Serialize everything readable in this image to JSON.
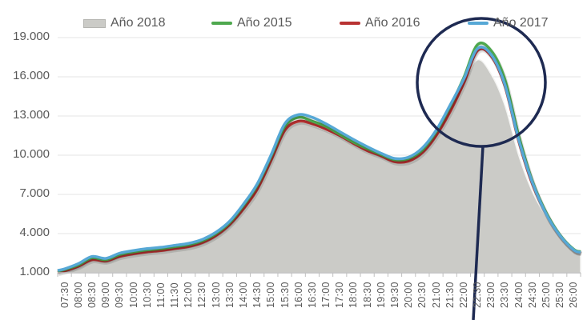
{
  "chart_data": {
    "type": "area+line",
    "title": "",
    "xlabel": "",
    "ylabel": "",
    "ylim": [
      1000,
      19000
    ],
    "yticks": [
      "1.000",
      "4.000",
      "7.000",
      "10.000",
      "13.000",
      "16.000",
      "19.000"
    ],
    "ytick_values": [
      1000,
      4000,
      7000,
      10000,
      13000,
      16000,
      19000
    ],
    "grid": "horizontal",
    "legend_position": "top",
    "categories": [
      "07:30",
      "08:00",
      "08:30",
      "09:00",
      "09:30",
      "10:00",
      "10:30",
      "11:00",
      "11:30",
      "12:00",
      "12:30",
      "13:00",
      "13:30",
      "14:00",
      "14:30",
      "15:00",
      "15:30",
      "16:00",
      "16:30",
      "17:00",
      "17:30",
      "18:00",
      "18:30",
      "19:00",
      "19:30",
      "20:00",
      "20:30",
      "21:00",
      "21:30",
      "22:00",
      "22:30",
      "23:00",
      "23:30",
      "24:00",
      "24:30",
      "25:00",
      "25:30",
      "26:00"
    ],
    "series": [
      {
        "name": "Año 2018",
        "type": "area",
        "color": "#cbcbc7",
        "values": [
          1200,
          1550,
          2050,
          1950,
          2300,
          2500,
          2650,
          2750,
          2900,
          3050,
          3350,
          3900,
          4750,
          6000,
          7500,
          9700,
          11900,
          12600,
          12300,
          11900,
          11400,
          10800,
          10300,
          9900,
          9500,
          9600,
          10300,
          11700,
          13500,
          15500,
          17300,
          16200,
          13800,
          10000,
          7200,
          5300,
          3800,
          2700
        ]
      },
      {
        "name": "Año 2015",
        "type": "line",
        "color": "#4ea84e",
        "values": [
          1250,
          1600,
          2150,
          2000,
          2400,
          2600,
          2750,
          2850,
          3000,
          3150,
          3450,
          4000,
          4850,
          6150,
          7700,
          9900,
          12200,
          12900,
          12600,
          12200,
          11600,
          11000,
          10500,
          10050,
          9650,
          9750,
          10400,
          11800,
          13700,
          15900,
          18450,
          18000,
          15800,
          11500,
          8000,
          5600,
          3900,
          2800
        ]
      },
      {
        "name": "Año 2016",
        "type": "line",
        "color": "#b83232",
        "values": [
          1150,
          1500,
          2000,
          1900,
          2250,
          2450,
          2600,
          2700,
          2850,
          3000,
          3300,
          3850,
          4700,
          5900,
          7400,
          9600,
          11900,
          12600,
          12400,
          12000,
          11500,
          10900,
          10350,
          9950,
          9500,
          9550,
          10200,
          11500,
          13300,
          15500,
          18000,
          17600,
          15300,
          11100,
          7800,
          5500,
          3850,
          2750
        ]
      },
      {
        "name": "Año 2017",
        "type": "line",
        "color": "#56a8d6",
        "values": [
          1300,
          1700,
          2250,
          2100,
          2500,
          2700,
          2850,
          2950,
          3100,
          3250,
          3550,
          4100,
          4950,
          6250,
          7800,
          10000,
          12400,
          13100,
          12900,
          12400,
          11800,
          11200,
          10650,
          10150,
          9750,
          9850,
          10550,
          11900,
          13800,
          15800,
          18150,
          17700,
          15400,
          11200,
          7900,
          5500,
          3850,
          2750
        ]
      }
    ],
    "annotations": [
      {
        "type": "circle",
        "description": "highlight around 22:30 peak",
        "color": "#1e2a52"
      },
      {
        "type": "pointer-line",
        "description": "line extending down from circle",
        "color": "#1e2a52"
      }
    ]
  },
  "legend": {
    "items": [
      {
        "label": "Año 2018",
        "kind": "area",
        "color": "#cbcbc7"
      },
      {
        "label": "Año 2015",
        "kind": "line",
        "color": "#4ea84e"
      },
      {
        "label": "Año 2016",
        "kind": "line",
        "color": "#b83232"
      },
      {
        "label": "Año 2017",
        "kind": "line",
        "color": "#56a8d6"
      }
    ]
  },
  "colors": {
    "gridline": "#e6e6e6",
    "axis": "#bfbfbf",
    "annotation": "#1e2a52",
    "text": "#595959"
  }
}
